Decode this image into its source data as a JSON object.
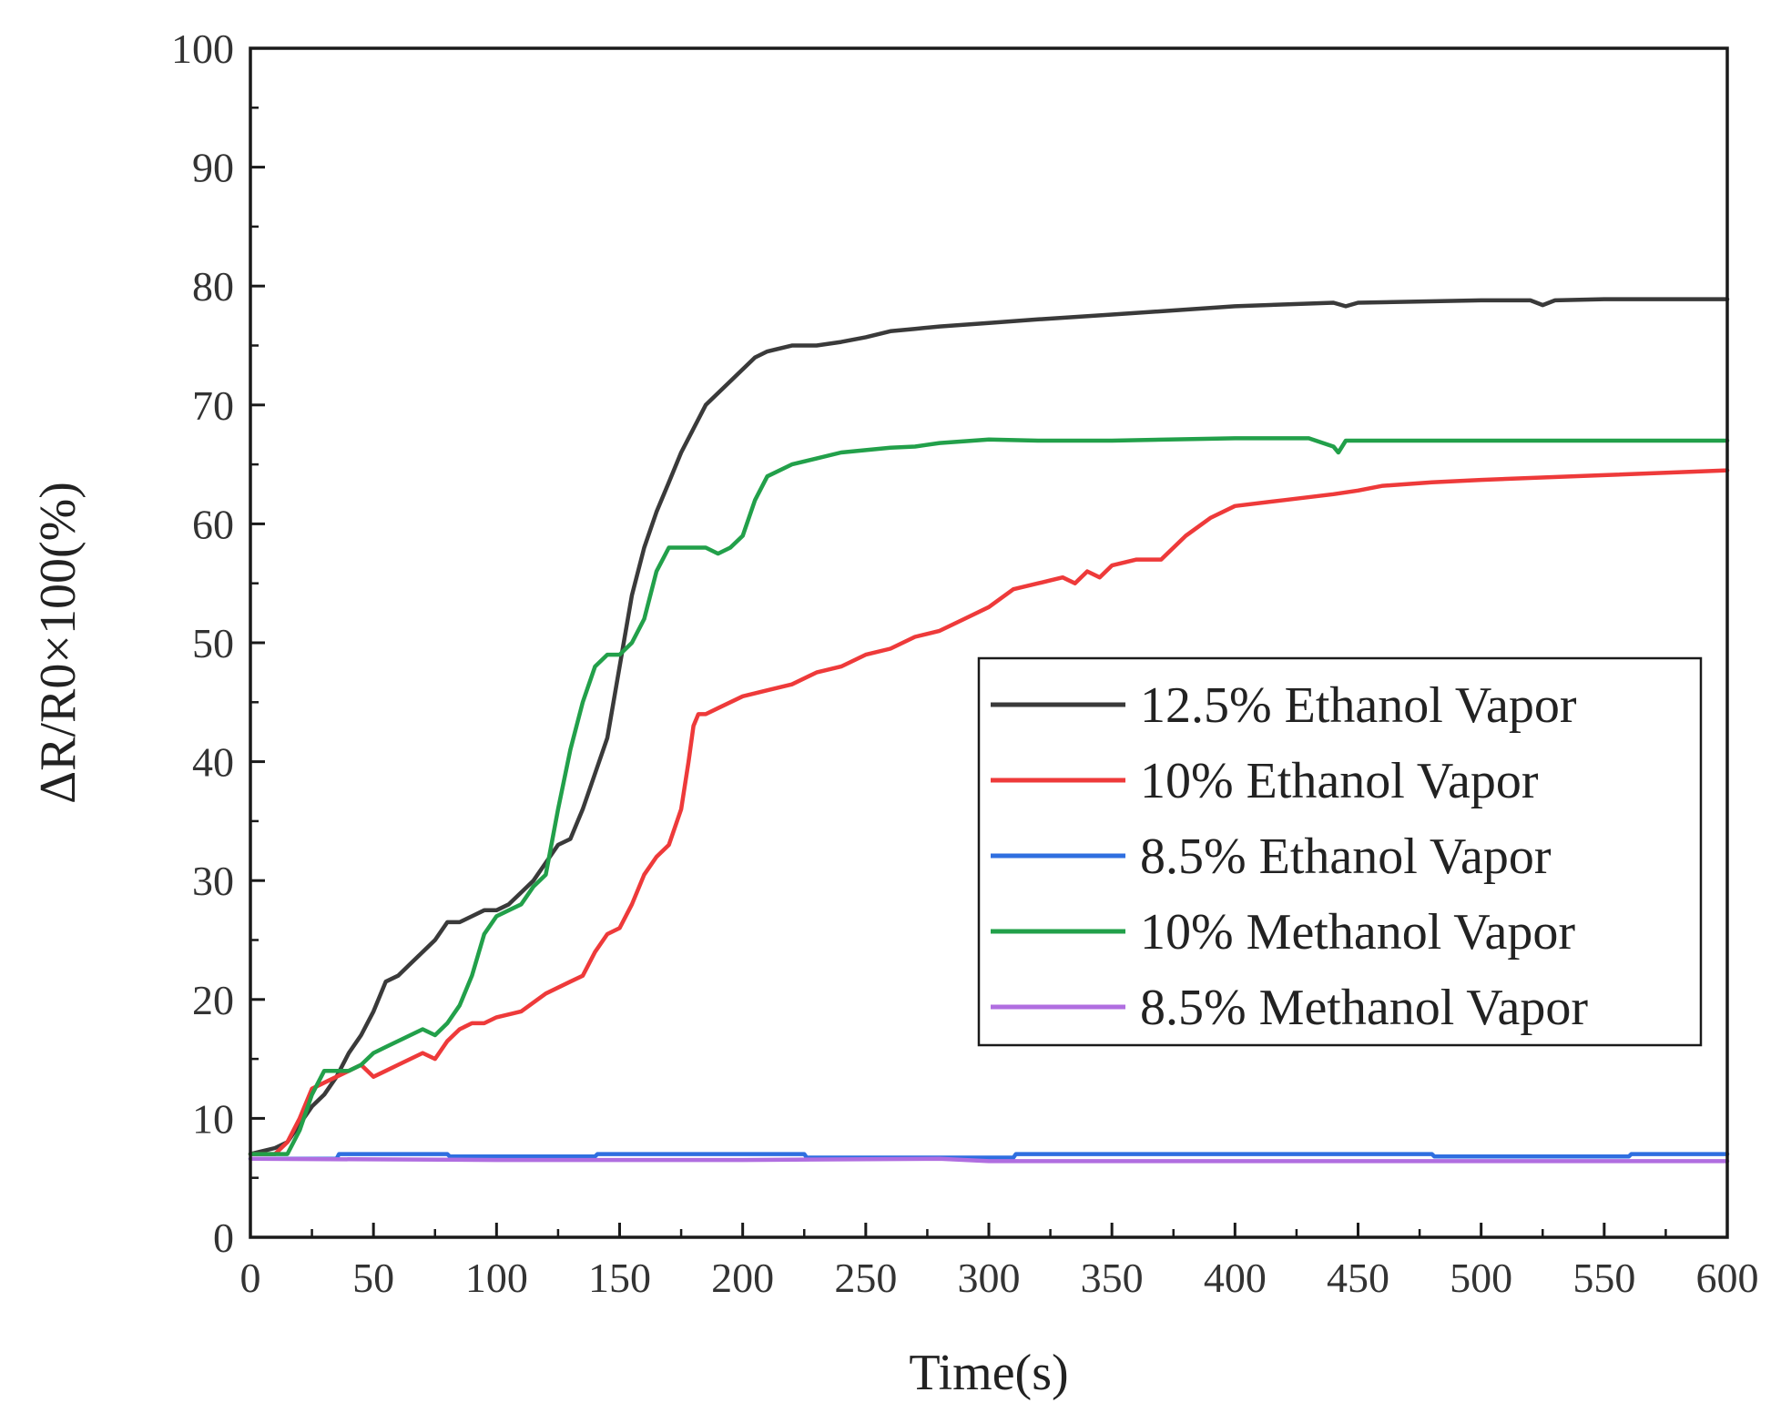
{
  "chart_data": {
    "type": "line",
    "title": "",
    "xlabel": "Time(s)",
    "ylabel": "ΔR/R0×100(%)",
    "xlim": [
      0,
      600
    ],
    "ylim": [
      0,
      100
    ],
    "xticks": [
      0,
      50,
      100,
      150,
      200,
      250,
      300,
      350,
      400,
      450,
      500,
      550,
      600
    ],
    "yticks": [
      0,
      10,
      20,
      30,
      40,
      50,
      60,
      70,
      80,
      90,
      100
    ],
    "xtick_labels": [
      "0",
      "50",
      "100",
      "150",
      "200",
      "250",
      "300",
      "350",
      "400",
      "450",
      "500",
      "550",
      "600"
    ],
    "ytick_labels": [
      "0",
      "10",
      "20",
      "30",
      "40",
      "50",
      "60",
      "70",
      "80",
      "90",
      "100"
    ],
    "grid": false,
    "legend_position": "center-right",
    "series": [
      {
        "name": "12.5% Ethanol Vapor",
        "color": "#3a3a3a",
        "x": [
          0,
          10,
          15,
          20,
          25,
          30,
          35,
          40,
          45,
          50,
          55,
          60,
          65,
          70,
          75,
          80,
          85,
          90,
          95,
          100,
          105,
          110,
          115,
          120,
          125,
          130,
          135,
          140,
          145,
          150,
          155,
          160,
          165,
          170,
          175,
          180,
          185,
          190,
          195,
          200,
          205,
          210,
          220,
          230,
          240,
          250,
          260,
          270,
          280,
          300,
          320,
          350,
          400,
          440,
          445,
          450,
          500,
          520,
          525,
          530,
          550,
          600
        ],
        "y": [
          7,
          7.5,
          8,
          9.5,
          11,
          12,
          13.5,
          15.5,
          17,
          19,
          21.5,
          22,
          23,
          24,
          25,
          26.5,
          26.5,
          27,
          27.5,
          27.5,
          28,
          29,
          30,
          31.5,
          33,
          33.5,
          36,
          39,
          42,
          48,
          54,
          58,
          61,
          63.5,
          66,
          68,
          70,
          71,
          72,
          73,
          74,
          74.5,
          75,
          75,
          75.3,
          75.7,
          76.2,
          76.4,
          76.6,
          76.9,
          77.2,
          77.6,
          78.3,
          78.6,
          78.3,
          78.6,
          78.8,
          78.8,
          78.4,
          78.8,
          78.9,
          78.9
        ]
      },
      {
        "name": "10% Ethanol Vapor",
        "color": "#ee3a3a",
        "x": [
          0,
          10,
          15,
          20,
          25,
          30,
          35,
          40,
          45,
          50,
          55,
          60,
          65,
          70,
          75,
          80,
          85,
          90,
          95,
          100,
          110,
          120,
          130,
          135,
          140,
          145,
          150,
          155,
          160,
          165,
          170,
          175,
          178,
          180,
          182,
          185,
          190,
          200,
          210,
          220,
          230,
          240,
          250,
          260,
          270,
          280,
          290,
          300,
          310,
          320,
          330,
          335,
          340,
          345,
          350,
          360,
          370,
          380,
          390,
          400,
          420,
          440,
          450,
          460,
          480,
          500,
          550,
          600
        ],
        "y": [
          7,
          7,
          8,
          10,
          12.5,
          13,
          13.5,
          14,
          14.5,
          13.5,
          14,
          14.5,
          15,
          15.5,
          15,
          16.5,
          17.5,
          18,
          18,
          18.5,
          19,
          20.5,
          21.5,
          22,
          24,
          25.5,
          26,
          28,
          30.5,
          32,
          33,
          36,
          40,
          43,
          44,
          44,
          44.5,
          45.5,
          46,
          46.5,
          47.5,
          48,
          49,
          49.5,
          50.5,
          51,
          52,
          53,
          54.5,
          55,
          55.5,
          55,
          56,
          55.5,
          56.5,
          57,
          57,
          59,
          60.5,
          61.5,
          62,
          62.5,
          62.8,
          63.2,
          63.5,
          63.7,
          64.1,
          64.5
        ]
      },
      {
        "name": "8.5% Ethanol Vapor",
        "color": "#2f6fe0",
        "x": [
          0,
          35,
          36,
          80,
          81,
          140,
          141,
          225,
          226,
          310,
          311,
          480,
          481,
          560,
          561,
          600
        ],
        "y": [
          6.6,
          6.6,
          7.0,
          7.0,
          6.8,
          6.8,
          7.0,
          7.0,
          6.7,
          6.7,
          7.0,
          7.0,
          6.8,
          6.8,
          7.0,
          7.0
        ]
      },
      {
        "name": "10% Methanol Vapor",
        "color": "#22a04a",
        "x": [
          0,
          10,
          15,
          20,
          25,
          30,
          35,
          40,
          45,
          50,
          55,
          60,
          65,
          70,
          75,
          80,
          85,
          90,
          95,
          100,
          105,
          110,
          115,
          120,
          125,
          130,
          135,
          140,
          145,
          150,
          155,
          160,
          165,
          170,
          175,
          180,
          185,
          190,
          195,
          200,
          205,
          210,
          220,
          230,
          240,
          250,
          260,
          270,
          280,
          300,
          320,
          350,
          400,
          430,
          440,
          442,
          445,
          450,
          500,
          550,
          600
        ],
        "y": [
          7,
          7,
          7,
          9,
          12,
          14,
          14,
          14,
          14.5,
          15.5,
          16,
          16.5,
          17,
          17.5,
          17,
          18,
          19.5,
          22,
          25.5,
          27,
          27.5,
          28,
          29.5,
          30.5,
          36,
          41,
          45,
          48,
          49,
          49,
          50,
          52,
          56,
          58,
          58,
          58,
          58,
          57.5,
          58,
          59,
          62,
          64,
          65,
          65.5,
          66,
          66.2,
          66.4,
          66.5,
          66.8,
          67.1,
          67,
          67,
          67.2,
          67.2,
          66.5,
          66,
          67,
          67,
          67,
          67,
          67
        ]
      },
      {
        "name": "8.5% Methanol Vapor",
        "color": "#b06ee0",
        "x": [
          0,
          100,
          200,
          280,
          300,
          400,
          500,
          600
        ],
        "y": [
          6.6,
          6.5,
          6.5,
          6.6,
          6.4,
          6.4,
          6.4,
          6.4
        ]
      }
    ]
  }
}
